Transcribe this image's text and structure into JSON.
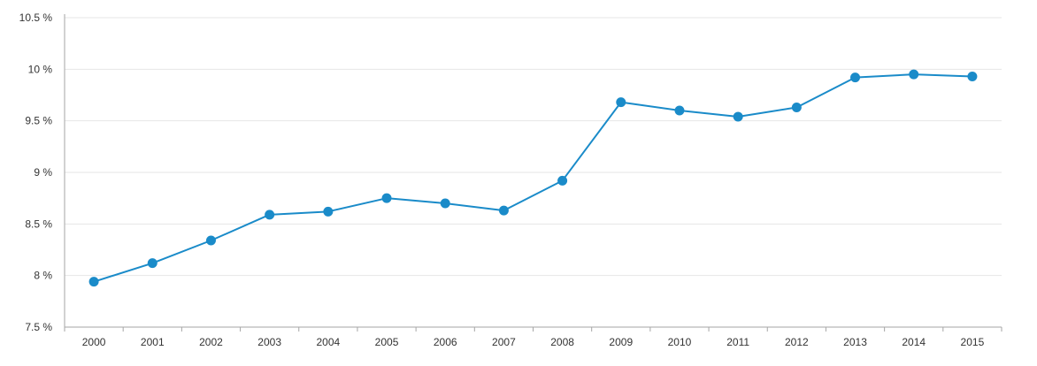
{
  "chart_data": {
    "type": "line",
    "title": "",
    "xlabel": "",
    "ylabel": "",
    "categories": [
      "2000",
      "2001",
      "2002",
      "2003",
      "2004",
      "2005",
      "2006",
      "2007",
      "2008",
      "2009",
      "2010",
      "2011",
      "2012",
      "2013",
      "2014",
      "2015"
    ],
    "series": [
      {
        "values": [
          7.94,
          8.12,
          8.34,
          8.59,
          8.62,
          8.75,
          8.7,
          8.63,
          8.92,
          9.68,
          9.6,
          9.54,
          9.63,
          9.92,
          9.95,
          9.93
        ],
        "color": "#1a8bc9"
      }
    ],
    "ylim": [
      7.5,
      10.5
    ],
    "yticks": [
      7.5,
      8,
      8.5,
      9,
      9.5,
      10,
      10.5
    ],
    "ytick_labels": [
      "7.5 %",
      "8 %",
      "8.5 %",
      "9 %",
      "9.5 %",
      "10 %",
      "10.5 %"
    ],
    "grid": "horizontal",
    "legend": "none",
    "colors": {
      "line": "#1a8bc9",
      "grid": "#e6e6e6",
      "axis": "#a6a6a6",
      "text": "#333333"
    }
  }
}
